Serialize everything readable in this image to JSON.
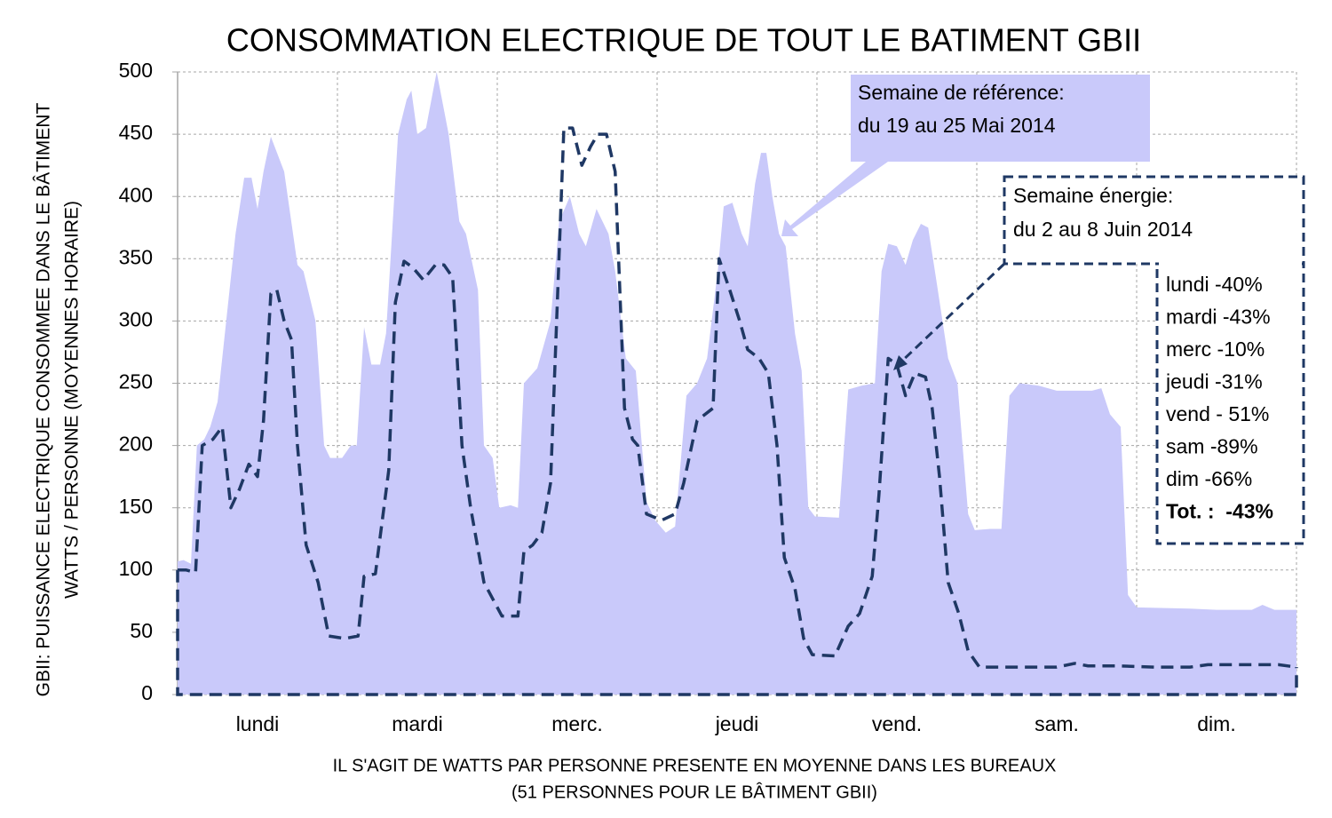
{
  "chart_data": {
    "type": "area_line",
    "title": "CONSOMMATION ELECTRIQUE DE TOUT LE BATIMENT GBII",
    "y_label": [
      "GBII: PUISSANCE ELECTRIQUE CONSOMMEE DANS LE BÂTIMENT",
      "WATTS / PERSONNE  (MOYENNES HORAIRE)"
    ],
    "x_label": [
      "IL S'AGIT DE WATTS PAR PERSONNE PRESENTE  EN MOYENNE DANS LES  BUREAUX",
      "(51 PERSONNES POUR LE BÂTIMENT GBII)"
    ],
    "categories": [
      "lundi",
      "mardi",
      "merc.",
      "jeudi",
      "vend.",
      "sam.",
      "dim."
    ],
    "xlim": [
      0,
      168
    ],
    "xticks": [
      0,
      24,
      48,
      72,
      96,
      120,
      144,
      168
    ],
    "ylim": [
      0,
      500
    ],
    "yticks": [
      0,
      50,
      100,
      150,
      200,
      250,
      300,
      350,
      400,
      450,
      500
    ],
    "grid": true,
    "series": [
      {
        "name": "Semaine de référence",
        "kind": "area",
        "color": "#c9c9fa",
        "x": [
          0,
          0.9,
          2,
          2.9,
          4,
          4.9,
          6,
          8.7,
          10,
          11.1,
          12,
          12.9,
          14,
          16,
          18,
          18.9,
          20.7,
          22,
          22.9,
          24.7,
          26,
          26.9,
          28,
          29.1,
          30.4,
          31.3,
          33.1,
          34.4,
          35.1,
          36,
          37.3,
          38.9,
          40.7,
          42.3,
          43.3,
          45.1,
          46,
          47.3,
          48.3,
          50,
          51.1,
          52,
          54,
          56,
          57.3,
          58.9,
          60.3,
          61.3,
          62.9,
          64.7,
          65.7,
          67.3,
          68.8,
          70.4,
          71.7,
          73.3,
          74.7,
          76.4,
          78,
          79.5,
          81.1,
          82,
          83.3,
          84.7,
          85.6,
          86.7,
          87.6,
          88.4,
          89.3,
          90.3,
          91.3,
          92.7,
          93.7,
          94.7,
          95.7,
          99.3,
          100.7,
          102.7,
          104.7,
          105.7,
          106.7,
          108,
          109.3,
          110.4,
          111.6,
          112.7,
          114,
          115.7,
          117.1,
          118.7,
          119.7,
          122,
          123.7,
          124.9,
          126.4,
          129.3,
          132,
          137.3,
          138.7,
          140,
          141.6,
          142.7,
          144,
          152,
          156,
          161.3,
          162.9,
          164.7,
          168
        ],
        "values": [
          107,
          108,
          105,
          200,
          205,
          215,
          235,
          370,
          415,
          415,
          390,
          420,
          448,
          420,
          345,
          340,
          300,
          200,
          190,
          190,
          200,
          200,
          295,
          265,
          265,
          290,
          450,
          478,
          485,
          450,
          455,
          500,
          450,
          380,
          370,
          325,
          200,
          190,
          150,
          152,
          150,
          250,
          262,
          300,
          380,
          400,
          370,
          360,
          390,
          370,
          340,
          270,
          260,
          155,
          140,
          130,
          135,
          240,
          250,
          270,
          340,
          392,
          395,
          370,
          360,
          410,
          435,
          435,
          400,
          370,
          360,
          290,
          260,
          150,
          143,
          142,
          245,
          248,
          250,
          340,
          362,
          360,
          345,
          365,
          378,
          375,
          330,
          270,
          250,
          145,
          132,
          133,
          133,
          240,
          250,
          248,
          244,
          244,
          246,
          225,
          215,
          80,
          70,
          69,
          68,
          68,
          72,
          68,
          68
        ]
      },
      {
        "name": "Semaine énergie",
        "kind": "line",
        "color": "#1f3864",
        "x": [
          0,
          1.3,
          2.7,
          3.7,
          5.3,
          6.7,
          8,
          9.3,
          10.7,
          12,
          12.9,
          14,
          14.9,
          16,
          17.1,
          18,
          19.3,
          21.1,
          22.7,
          25.1,
          27.1,
          28,
          29.7,
          31.7,
          32.7,
          34,
          35.3,
          36.9,
          38.7,
          40,
          41.3,
          42.7,
          44,
          46,
          48.7,
          51.1,
          52,
          53.3,
          54.7,
          56,
          58,
          59.3,
          60.7,
          62,
          63.1,
          64.4,
          65.7,
          67.1,
          68.3,
          69.1,
          70.4,
          72.7,
          74.7,
          76,
          78,
          80.4,
          81.3,
          82.9,
          84.4,
          85.6,
          87.3,
          88.7,
          90,
          91.1,
          92.7,
          94,
          95.3,
          98.7,
          100.7,
          102.4,
          104.3,
          105.3,
          106.7,
          108,
          109.3,
          110.7,
          112.3,
          113.3,
          114.4,
          115.7,
          117.3,
          118.7,
          120.4,
          125.3,
          132,
          134.7,
          136.7,
          141.3,
          146.7,
          152,
          154.7,
          160,
          165.3,
          168
        ],
        "values": [
          100,
          100,
          98,
          200,
          205,
          215,
          150,
          165,
          185,
          175,
          220,
          322,
          325,
          300,
          285,
          200,
          120,
          90,
          47,
          45,
          47,
          95,
          97,
          180,
          315,
          348,
          343,
          333,
          345,
          345,
          335,
          200,
          150,
          90,
          63,
          63,
          115,
          120,
          130,
          170,
          455,
          455,
          425,
          440,
          450,
          450,
          420,
          230,
          205,
          200,
          145,
          140,
          145,
          170,
          220,
          230,
          350,
          325,
          300,
          277,
          270,
          258,
          200,
          110,
          85,
          45,
          32,
          31,
          55,
          65,
          95,
          160,
          270,
          265,
          240,
          258,
          255,
          230,
          175,
          90,
          65,
          35,
          22,
          22,
          22,
          25,
          23,
          23,
          22,
          22,
          24,
          24,
          24,
          22
        ]
      }
    ],
    "annotations": {
      "reference": [
        "Semaine de référence:",
        "du 19 au 25 Mai 2014"
      ],
      "energy": [
        "Semaine énergie:",
        "du 2 au 8 Juin 2014"
      ],
      "savings": [
        "lundi -40%",
        "mardi -43%",
        "merc -10%",
        "jeudi -31%",
        "vend - 51%",
        "sam -89%",
        "dim -66%",
        "Tot. :  -43%"
      ]
    }
  }
}
